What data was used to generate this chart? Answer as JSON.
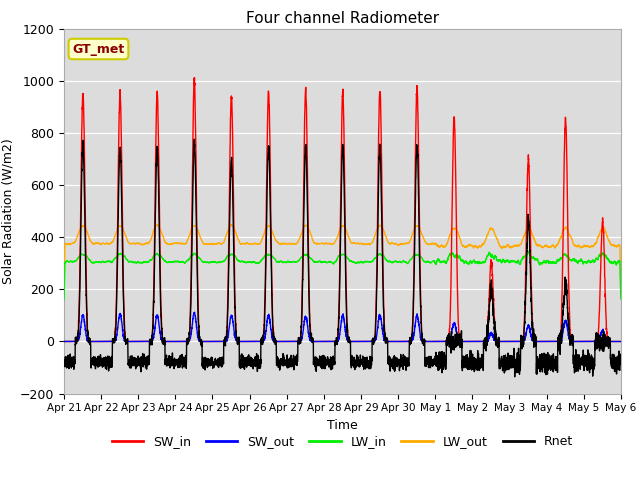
{
  "title": "Four channel Radiometer",
  "xlabel": "Time",
  "ylabel": "Solar Radiation (W/m2)",
  "ylim": [
    -200,
    1200
  ],
  "label_text": "GT_met",
  "background_color": "#ffffff",
  "plot_bg_color": "#dcdcdc",
  "x_tick_labels": [
    "Apr 21",
    "Apr 22",
    "Apr 23",
    "Apr 24",
    "Apr 25",
    "Apr 26",
    "Apr 27",
    "Apr 28",
    "Apr 29",
    "Apr 30",
    "May 1",
    "May 2",
    "May 3",
    "May 4",
    "May 5",
    "May 6"
  ],
  "yticks": [
    -200,
    0,
    200,
    400,
    600,
    800,
    1000,
    1200
  ],
  "series": {
    "SW_in": {
      "color": "#ff0000",
      "lw": 1.0
    },
    "SW_out": {
      "color": "#0000ff",
      "lw": 1.0
    },
    "LW_in": {
      "color": "#00ee00",
      "lw": 1.0
    },
    "LW_out": {
      "color": "#ffaa00",
      "lw": 1.0
    },
    "Rnet": {
      "color": "#000000",
      "lw": 1.0
    }
  },
  "legend_items": [
    {
      "label": "SW_in",
      "color": "#ff0000"
    },
    {
      "label": "SW_out",
      "color": "#0000ff"
    },
    {
      "label": "LW_in",
      "color": "#00ee00"
    },
    {
      "label": "LW_out",
      "color": "#ffaa00"
    },
    {
      "label": "Rnet",
      "color": "#000000"
    }
  ]
}
